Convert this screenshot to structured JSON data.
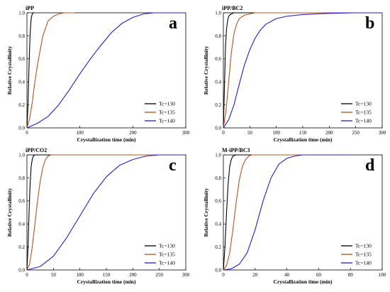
{
  "colors": {
    "Tc=130": "#000000",
    "Tc=135": "#b5531e",
    "Tc=140": "#2a1ad8"
  },
  "chart_data": [
    {
      "type": "line",
      "title": "iPP",
      "letter": "a",
      "xlabel": "Crystallization time (min)",
      "ylabel": "Relative Crystallinity",
      "xlim": [
        0,
        300
      ],
      "ylim": [
        0,
        1.0
      ],
      "xticks": [
        "0",
        "100",
        "200",
        "300"
      ],
      "yticks": [
        "0.0",
        "0.2",
        "0.4",
        "0.6",
        "0.8",
        "1.0"
      ],
      "legend": "bottom-right",
      "grid": false,
      "series": [
        {
          "name": "Tc=130",
          "color": "#000000",
          "x": [
            0,
            2,
            4,
            6,
            8,
            10,
            12,
            15
          ],
          "y": [
            0,
            0.2,
            0.55,
            0.82,
            0.95,
            0.99,
            1.0,
            1.0
          ]
        },
        {
          "name": "Tc=135",
          "color": "#b5531e",
          "x": [
            0,
            5,
            10,
            15,
            20,
            30,
            40,
            50,
            60,
            70,
            80,
            90
          ],
          "y": [
            0,
            0.08,
            0.22,
            0.4,
            0.55,
            0.8,
            0.93,
            0.97,
            0.99,
            1.0,
            1.0,
            1.0
          ]
        },
        {
          "name": "Tc=140",
          "color": "#2a1ad8",
          "x": [
            0,
            20,
            40,
            60,
            80,
            100,
            120,
            140,
            160,
            180,
            200,
            220,
            240,
            260,
            280,
            300
          ],
          "y": [
            0,
            0.04,
            0.1,
            0.2,
            0.33,
            0.47,
            0.6,
            0.72,
            0.83,
            0.91,
            0.96,
            0.99,
            1.0,
            1.0,
            1.0,
            1.0
          ]
        }
      ]
    },
    {
      "type": "line",
      "title": "iPP/BC2",
      "letter": "b",
      "xlabel": "Crystallization time (min)",
      "ylabel": "Relative Crystallinity",
      "xlim": [
        0,
        300
      ],
      "ylim": [
        0,
        1.0
      ],
      "xticks": [
        "0",
        "50",
        "100",
        "150",
        "200",
        "250",
        "300"
      ],
      "yticks": [
        "0.0",
        "0.2",
        "0.4",
        "0.6",
        "0.8",
        "1.0"
      ],
      "legend": "bottom-right",
      "grid": false,
      "series": [
        {
          "name": "Tc=130",
          "color": "#000000",
          "x": [
            0,
            2,
            4,
            6,
            8,
            10,
            12,
            15,
            20,
            300
          ],
          "y": [
            0,
            0.35,
            0.7,
            0.86,
            0.93,
            0.97,
            0.98,
            0.99,
            1.0,
            1.0
          ]
        },
        {
          "name": "Tc=135",
          "color": "#b5531e",
          "x": [
            0,
            5,
            10,
            15,
            20,
            25,
            30,
            40,
            50,
            60,
            300
          ],
          "y": [
            0,
            0.15,
            0.4,
            0.65,
            0.82,
            0.9,
            0.95,
            0.98,
            0.99,
            1.0,
            1.0
          ]
        },
        {
          "name": "Tc=140",
          "color": "#2a1ad8",
          "x": [
            0,
            10,
            20,
            30,
            40,
            50,
            60,
            70,
            80,
            100,
            120,
            150,
            200,
            250,
            300
          ],
          "y": [
            0,
            0.07,
            0.2,
            0.38,
            0.55,
            0.68,
            0.78,
            0.85,
            0.9,
            0.95,
            0.97,
            0.985,
            0.995,
            1.0,
            1.0
          ]
        }
      ]
    },
    {
      "type": "line",
      "title": "iPP/CO2",
      "letter": "c",
      "xlabel": "Crystallization time (min)",
      "ylabel": "Relative Crystallinity",
      "xlim": [
        0,
        300
      ],
      "ylim": [
        0,
        1.0
      ],
      "xticks": [
        "0",
        "50",
        "100",
        "150",
        "200",
        "250",
        "300"
      ],
      "yticks": [
        "0.0",
        "0.2",
        "0.4",
        "0.6",
        "0.8",
        "1.0"
      ],
      "legend": "bottom-right",
      "grid": false,
      "series": [
        {
          "name": "Tc=130",
          "color": "#000000",
          "x": [
            0,
            2,
            4,
            6,
            8,
            10,
            12,
            15,
            20,
            300
          ],
          "y": [
            0,
            0.2,
            0.5,
            0.75,
            0.9,
            0.96,
            0.99,
            1.0,
            1.0,
            1.0
          ]
        },
        {
          "name": "Tc=135",
          "color": "#b5531e",
          "x": [
            0,
            5,
            10,
            15,
            20,
            25,
            30,
            35,
            40,
            45,
            300
          ],
          "y": [
            0,
            0.05,
            0.2,
            0.4,
            0.6,
            0.77,
            0.89,
            0.96,
            0.99,
            1.0,
            1.0
          ]
        },
        {
          "name": "Tc=140",
          "color": "#2a1ad8",
          "x": [
            0,
            25,
            50,
            75,
            100,
            125,
            150,
            175,
            200,
            225,
            250,
            275,
            300
          ],
          "y": [
            0,
            0.03,
            0.12,
            0.28,
            0.47,
            0.66,
            0.81,
            0.91,
            0.96,
            0.99,
            1.0,
            1.0,
            1.0
          ]
        }
      ]
    },
    {
      "type": "line",
      "title": "M-iPP/BC3",
      "letter": "d",
      "xlabel": "Crystallization time (min)",
      "ylabel": "Relative Crystallinity",
      "xlim": [
        0,
        100
      ],
      "ylim": [
        0,
        1.0
      ],
      "xticks": [
        "0",
        "20",
        "40",
        "60",
        "80",
        "100"
      ],
      "yticks": [
        "0.0",
        "0.2",
        "0.4",
        "0.6",
        "0.8",
        "1.0"
      ],
      "legend": "bottom-right",
      "grid": false,
      "series": [
        {
          "name": "Tc=130",
          "color": "#000000",
          "x": [
            0,
            1,
            2,
            3,
            4,
            5,
            6,
            8,
            10,
            80
          ],
          "y": [
            0,
            0.2,
            0.5,
            0.75,
            0.9,
            0.96,
            0.99,
            1.0,
            1.0,
            1.0
          ]
        },
        {
          "name": "Tc=135",
          "color": "#b5531e",
          "x": [
            0,
            2,
            4,
            6,
            8,
            10,
            12,
            14,
            16,
            18,
            20,
            80
          ],
          "y": [
            0,
            0.04,
            0.15,
            0.35,
            0.58,
            0.78,
            0.9,
            0.96,
            0.99,
            1.0,
            1.0,
            1.0
          ]
        },
        {
          "name": "Tc=140",
          "color": "#2a1ad8",
          "x": [
            0,
            5,
            10,
            15,
            20,
            25,
            30,
            35,
            40,
            45,
            50,
            60,
            80
          ],
          "y": [
            0,
            0.01,
            0.05,
            0.15,
            0.35,
            0.6,
            0.8,
            0.92,
            0.97,
            0.99,
            1.0,
            1.0,
            1.0
          ]
        }
      ]
    }
  ]
}
